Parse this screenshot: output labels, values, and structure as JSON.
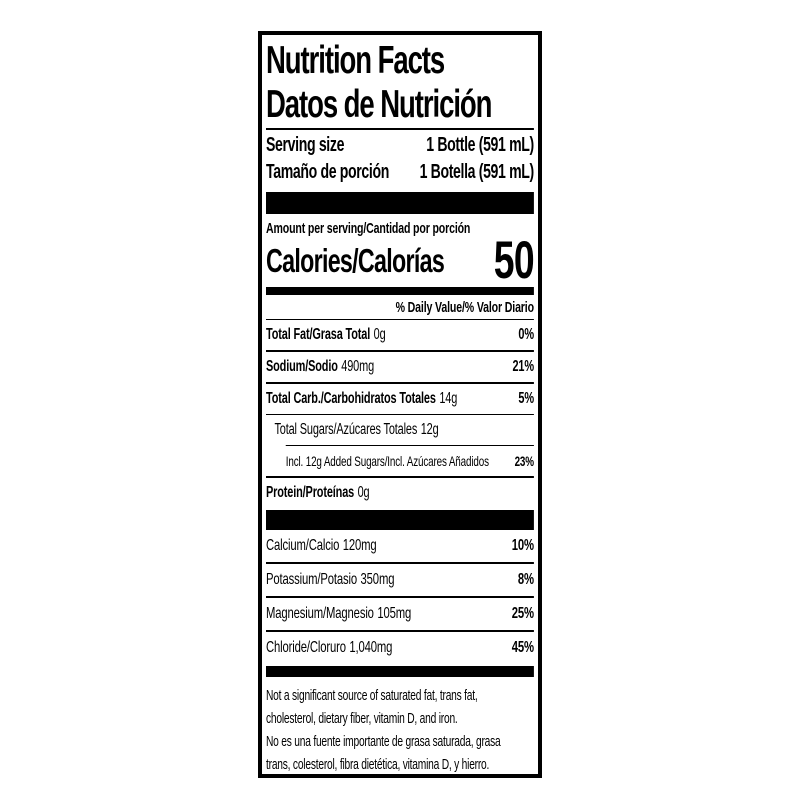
{
  "colors": {
    "ink": "#000000",
    "paper": "#ffffff"
  },
  "header": {
    "title_en": "Nutrition Facts",
    "title_es": "Datos de Nutrición"
  },
  "serving": {
    "rows": [
      {
        "label": "Serving size",
        "value": "1 Bottle (591 mL)"
      },
      {
        "label": "Tamaño de porción",
        "value": "1 Botella (591 mL)"
      }
    ]
  },
  "calories": {
    "amount_per_serving": "Amount per serving/Cantidad por porción",
    "label": "Calories/Calorías",
    "value": "50"
  },
  "daily_value": {
    "header": "% Daily Value/% Valor Diario"
  },
  "nutrients": [
    {
      "name": "Total Fat/Grasa Total",
      "amount": "0g",
      "dv": "0%"
    },
    {
      "name": "Sodium/Sodio",
      "amount": "490mg",
      "dv": "21%"
    },
    {
      "name": "Total Carb./Carbohidratos Totales",
      "amount": "14g",
      "dv": "5%"
    },
    {
      "name": "Total Sugars/Azúcares Totales",
      "amount": "12g",
      "dv": ""
    },
    {
      "name": "Incl. 12g Added Sugars/Incl. Azúcares Añadidos",
      "amount": "",
      "dv": "23%"
    },
    {
      "name": "Protein/Proteínas",
      "amount": "0g",
      "dv": ""
    }
  ],
  "minerals": [
    {
      "name": "Calcium/Calcio",
      "amount": "120mg",
      "dv": "10%"
    },
    {
      "name": "Potassium/Potasio",
      "amount": "350mg",
      "dv": "8%"
    },
    {
      "name": "Magnesium/Magnesio",
      "amount": "105mg",
      "dv": "25%"
    },
    {
      "name": "Chloride/Cloruro",
      "amount": "1,040mg",
      "dv": "45%"
    }
  ],
  "footnote": {
    "en_line1": "Not a significant source of saturated fat, trans fat,",
    "en_line2": "cholesterol, dietary fiber, vitamin D, and iron.",
    "es_line1": "No es una fuente importante de grasa saturada, grasa",
    "es_line2": "trans, colesterol, fibra dietética, vitamina D, y hierro."
  }
}
